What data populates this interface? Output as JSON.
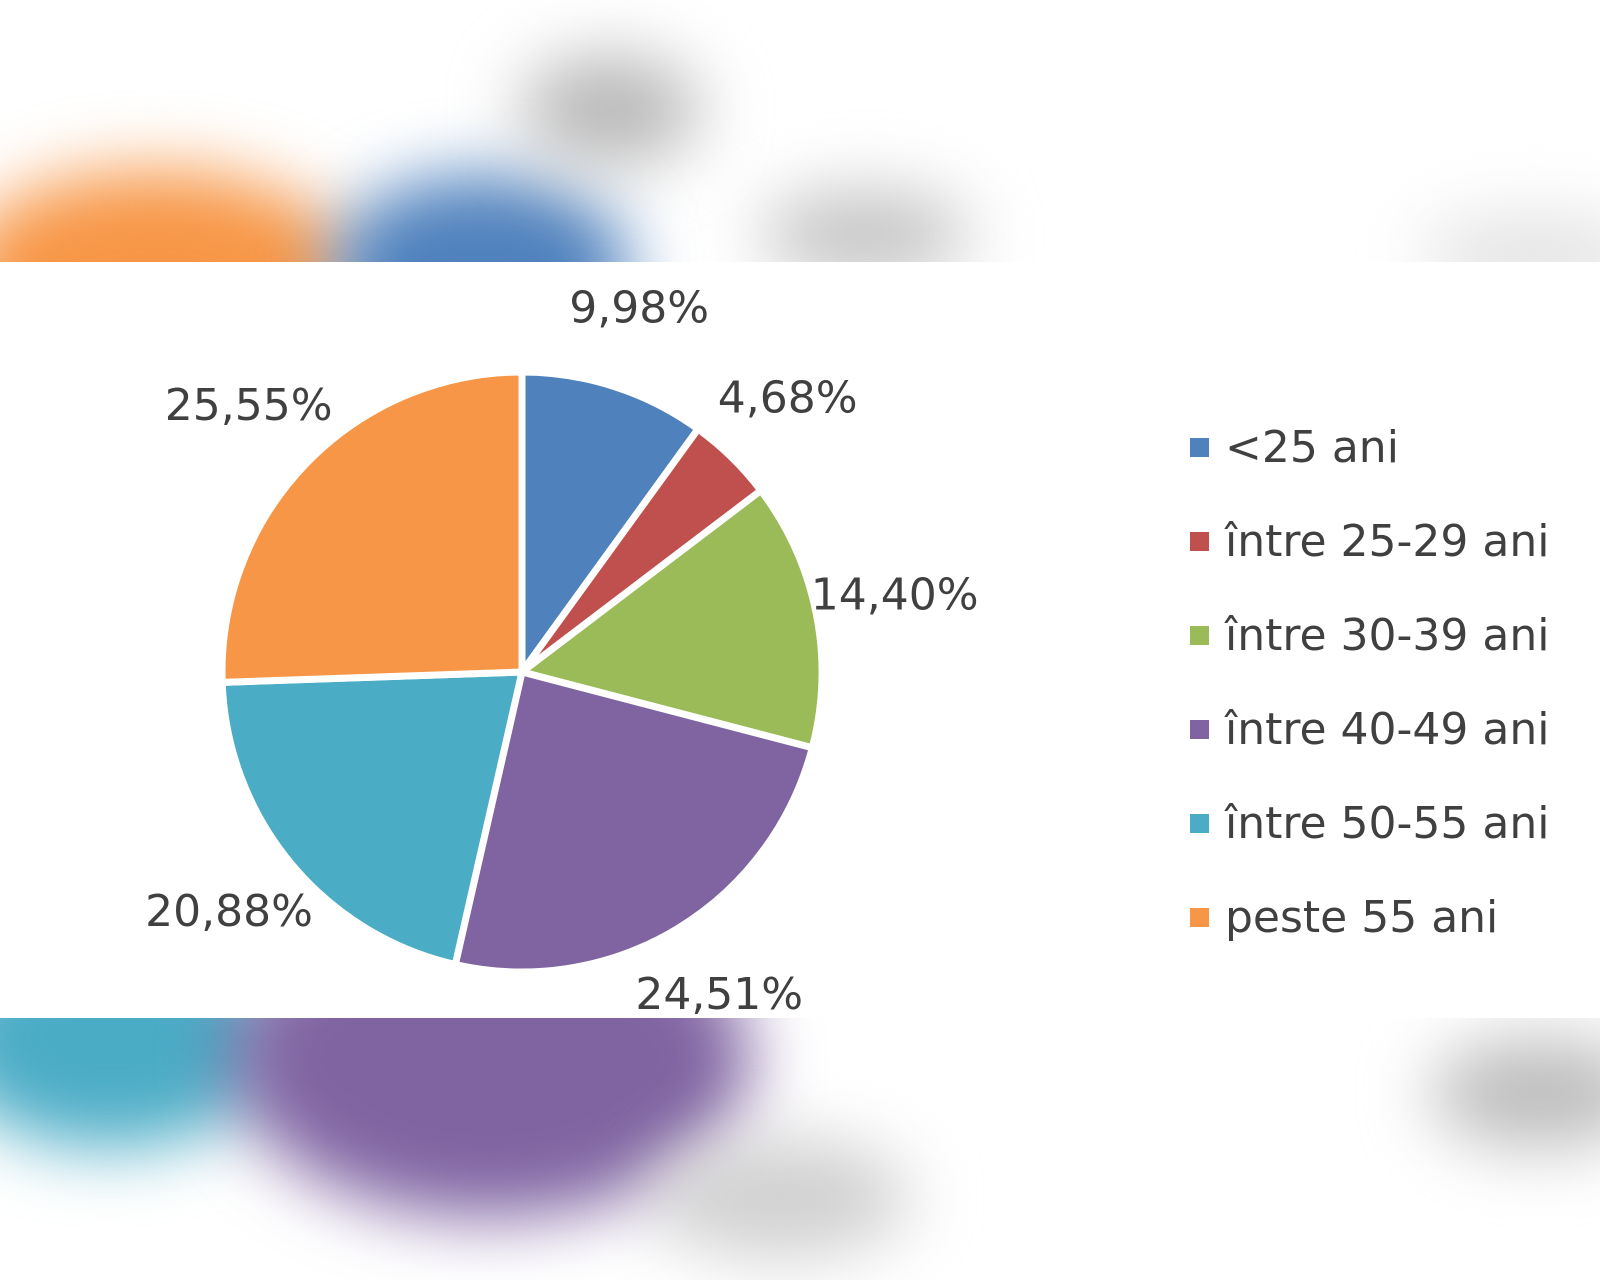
{
  "chart_data": {
    "type": "pie",
    "categories": [
      "<25 ani",
      "între 25-29 ani",
      "între 30-39 ani",
      "între 40-49 ani",
      "între 50-55 ani",
      "peste 55 ani"
    ],
    "values": [
      9.98,
      4.68,
      14.4,
      24.51,
      20.88,
      25.55
    ],
    "data_labels": [
      "9,98%",
      "4,68%",
      "14,40%",
      "24,51%",
      "20,88%",
      "25,55%"
    ],
    "colors": [
      "#4f81bd",
      "#c0504d",
      "#9bbb59",
      "#8064a2",
      "#4bacc6",
      "#f79646"
    ],
    "legend": "right"
  }
}
